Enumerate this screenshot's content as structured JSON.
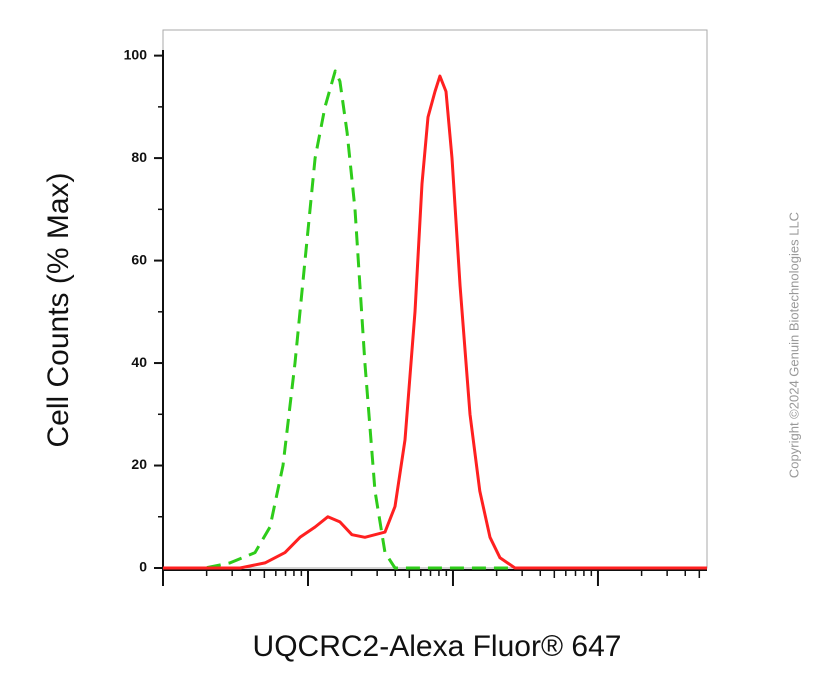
{
  "chart_data": {
    "type": "line",
    "x_label": "UQCRC2-Alexa Fluor® 647",
    "y_label": "Cell Counts (% Max)",
    "copyright": "Copyright ©2024 Genuin Biotechnologies LLC",
    "xlog": true,
    "xlim": [
      1,
      5650
    ],
    "xticks": [
      1,
      10,
      100,
      1000
    ],
    "ylim": [
      0,
      105
    ],
    "yticks": [
      0,
      20,
      40,
      60,
      80,
      100
    ],
    "series": [
      {
        "color": "#2ecc1a",
        "dashed": true,
        "x": [
          1,
          1.95,
          2.9,
          4.31,
          5.47,
          6.72,
          8.13,
          9.53,
          11.2,
          13.1,
          15.4,
          16.6,
          18.6,
          21.1,
          24.7,
          29.0,
          34.0,
          39.8,
          59.2,
          211,
          1030,
          5650
        ],
        "values": [
          0,
          0,
          1,
          3,
          8,
          20,
          40,
          60,
          80,
          90,
          97,
          95,
          85,
          70,
          40,
          15,
          3,
          0,
          0,
          0,
          0,
          0
        ]
      },
      {
        "color": "#ff2020",
        "dashed": false,
        "x": [
          1,
          3.4,
          5.05,
          6.94,
          8.81,
          11.2,
          13.7,
          16.6,
          20.1,
          24.7,
          34.0,
          39.8,
          46.7,
          54.7,
          61.1,
          67.3,
          75.2,
          81.3,
          89.5,
          98.5,
          112,
          131,
          153,
          180,
          211,
          268,
          1030,
          5650
        ],
        "values": [
          0,
          0,
          1,
          3,
          6,
          8,
          10,
          9,
          6.5,
          6,
          7,
          12,
          25,
          50,
          75,
          88,
          93,
          96,
          93,
          80,
          55,
          30,
          15,
          6,
          2,
          0,
          0,
          0
        ]
      }
    ]
  }
}
